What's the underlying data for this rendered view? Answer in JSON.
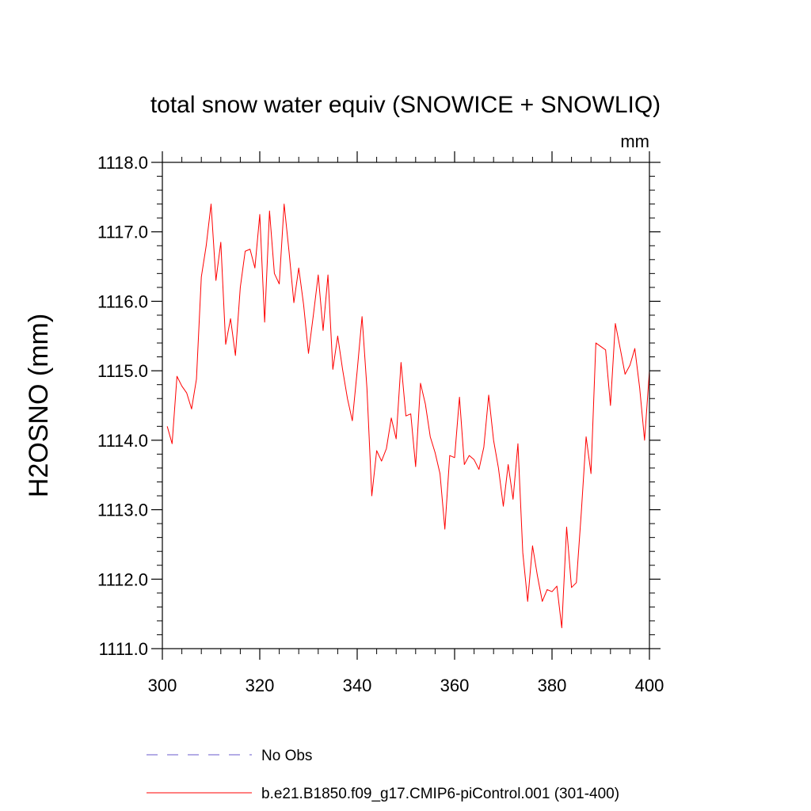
{
  "chart_data": {
    "type": "line",
    "title": "total snow water equiv (SNOWICE + SNOWLIQ)",
    "units": "mm",
    "xlabel": "",
    "ylabel": "H2OSNO  (mm)",
    "xlim": [
      300,
      400
    ],
    "ylim": [
      1111.0,
      1118.0
    ],
    "x_ticks": [
      300,
      320,
      340,
      360,
      380,
      400
    ],
    "x_tick_labels": [
      "300",
      "320",
      "340",
      "360",
      "380",
      "400"
    ],
    "y_ticks": [
      1111.0,
      1112.0,
      1113.0,
      1114.0,
      1115.0,
      1116.0,
      1117.0,
      1118.0
    ],
    "y_tick_labels": [
      "1111.0",
      "1112.0",
      "1113.0",
      "1114.0",
      "1115.0",
      "1116.0",
      "1117.0",
      "1118.0"
    ],
    "grid": false,
    "legend_position": "bottom",
    "series": [
      {
        "name": "No Obs",
        "color": "#6a5acd",
        "style": "dashed",
        "x": [],
        "values": []
      },
      {
        "name": "b.e21.B1850.f09_g17.CMIP6-piControl.001 (301-400)",
        "color": "#ff0000",
        "style": "solid",
        "x": [
          301,
          302,
          303,
          304,
          305,
          306,
          307,
          308,
          309,
          310,
          311,
          312,
          313,
          314,
          315,
          316,
          317,
          318,
          319,
          320,
          321,
          322,
          323,
          324,
          325,
          326,
          327,
          328,
          329,
          330,
          331,
          332,
          333,
          334,
          335,
          336,
          337,
          338,
          339,
          340,
          341,
          342,
          343,
          344,
          345,
          346,
          347,
          348,
          349,
          350,
          351,
          352,
          353,
          354,
          355,
          356,
          357,
          358,
          359,
          360,
          361,
          362,
          363,
          364,
          365,
          366,
          367,
          368,
          369,
          370,
          371,
          372,
          373,
          374,
          375,
          376,
          377,
          378,
          379,
          380,
          381,
          382,
          383,
          384,
          385,
          386,
          387,
          388,
          389,
          390,
          391,
          392,
          393,
          394,
          395,
          396,
          397,
          398,
          399,
          400
        ],
        "values": [
          1114.2,
          1113.95,
          1114.92,
          1114.78,
          1114.68,
          1114.45,
          1114.88,
          1116.35,
          1116.8,
          1117.4,
          1116.3,
          1116.85,
          1115.38,
          1115.75,
          1115.22,
          1116.2,
          1116.72,
          1116.75,
          1116.48,
          1117.25,
          1115.7,
          1117.3,
          1116.4,
          1116.25,
          1117.4,
          1116.72,
          1115.98,
          1116.48,
          1115.95,
          1115.25,
          1115.8,
          1116.38,
          1115.58,
          1116.38,
          1115.02,
          1115.5,
          1115.02,
          1114.6,
          1114.28,
          1115.0,
          1115.78,
          1114.75,
          1113.2,
          1113.85,
          1113.7,
          1113.88,
          1114.32,
          1114.02,
          1115.12,
          1114.35,
          1114.38,
          1113.62,
          1114.82,
          1114.52,
          1114.05,
          1113.82,
          1113.52,
          1112.72,
          1113.78,
          1113.75,
          1114.62,
          1113.65,
          1113.78,
          1113.72,
          1113.58,
          1113.9,
          1114.65,
          1114.0,
          1113.6,
          1113.05,
          1113.65,
          1113.15,
          1113.95,
          1112.38,
          1111.68,
          1112.48,
          1112.05,
          1111.68,
          1111.85,
          1111.82,
          1111.9,
          1111.3,
          1112.75,
          1111.88,
          1111.95,
          1112.95,
          1114.05,
          1113.52,
          1115.4,
          1115.35,
          1115.3,
          1114.5,
          1115.68,
          1115.32,
          1114.95,
          1115.08,
          1115.32,
          1114.75,
          1114.0,
          1115.0
        ]
      }
    ]
  }
}
